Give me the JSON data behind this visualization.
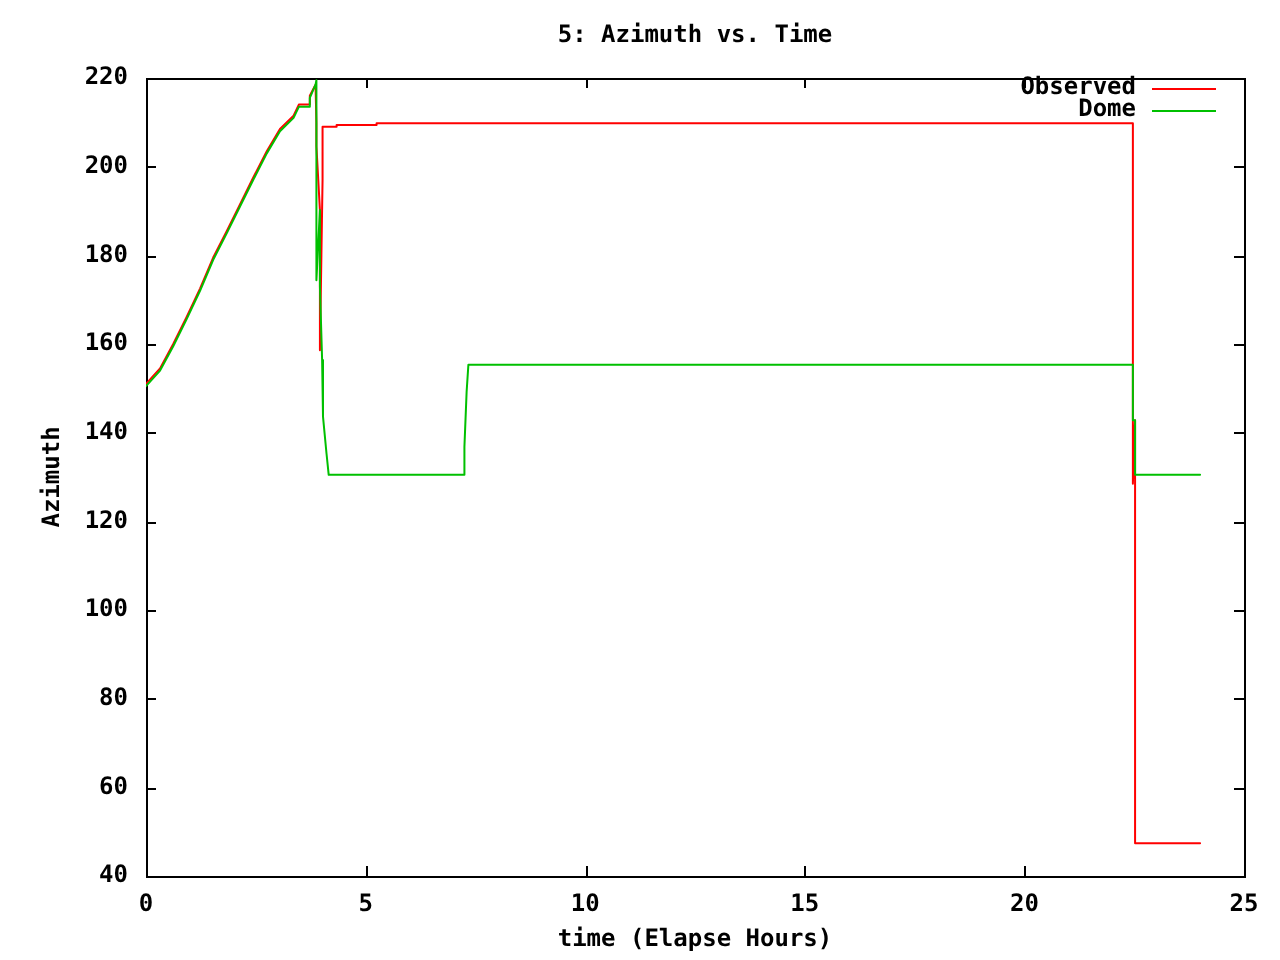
{
  "chart_data": {
    "type": "line",
    "title": "5: Azimuth vs. Time",
    "xlabel": "time (Elapse Hours)",
    "ylabel": "Azimuth",
    "xlim": [
      0,
      25
    ],
    "xticks": [
      0,
      5,
      10,
      15,
      20,
      25
    ],
    "ylim": [
      40,
      220
    ],
    "yticks": [
      40,
      60,
      80,
      100,
      120,
      140,
      160,
      180,
      200,
      220
    ],
    "legend": "top right",
    "series": [
      {
        "name": "Observed",
        "color": "#ff0000",
        "x": [
          0,
          0.32,
          0.62,
          0.92,
          1.23,
          1.53,
          1.84,
          2.14,
          2.44,
          2.75,
          3.05,
          3.36,
          3.48,
          3.69,
          3.73,
          3.86,
          3.88,
          3.88,
          3.96,
          3.96,
          4.02,
          4.02,
          4.34,
          4.34,
          5.25,
          5.25,
          22.47,
          22.47,
          22.52,
          22.52,
          24.0
        ],
        "values": [
          151,
          154.5,
          160,
          166,
          172.5,
          179.5,
          185.5,
          191.5,
          197.5,
          203.5,
          208.5,
          211.5,
          214,
          214,
          216,
          218.5,
          209.8,
          204.6,
          190.2,
          158.6,
          197,
          209,
          209,
          209.4,
          209.4,
          209.8,
          209.8,
          128.5,
          142.8,
          47.4,
          47.4
        ]
      },
      {
        "name": "Dome",
        "color": "#00c000",
        "x": [
          0,
          0.32,
          0.62,
          0.92,
          1.23,
          1.53,
          1.84,
          2.14,
          2.44,
          2.75,
          3.05,
          3.36,
          3.48,
          3.69,
          3.73,
          3.86,
          3.88,
          3.88,
          3.96,
          3.96,
          4.01,
          4.02,
          4.04,
          4.11,
          4.16,
          7.25,
          7.25,
          7.3,
          7.34,
          22.47,
          22.47,
          22.52,
          22.52,
          24.0
        ],
        "values": [
          150.5,
          154,
          159.5,
          165.5,
          172,
          179,
          185,
          191,
          197,
          203,
          208,
          211,
          213.5,
          213.5,
          215.5,
          218.5,
          219.5,
          174.4,
          190.2,
          172.9,
          156.4,
          156.4,
          143.6,
          135.3,
          130.5,
          130.5,
          136.8,
          149.2,
          155.3,
          155.3,
          142.8,
          142.8,
          130.5,
          130.5
        ]
      }
    ]
  }
}
